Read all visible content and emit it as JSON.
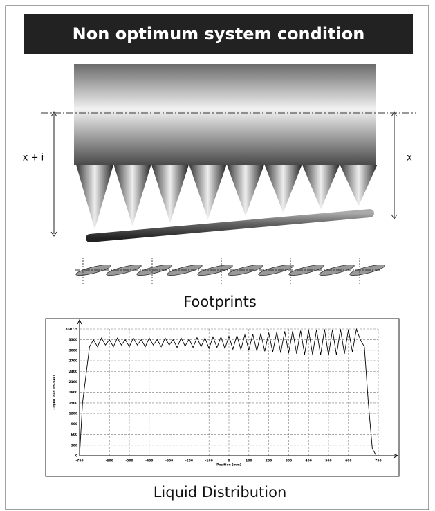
{
  "title": "Non optimum system condition",
  "left_offset_label": "x + i",
  "right_offset_label": "x",
  "footprints_caption": "Footprints",
  "chart_caption": "Liquid Distribution",
  "chart_data": {
    "type": "line",
    "x_label": "Position [mm]",
    "y_label": "Liquid load [ml/sec]",
    "xlim": [
      -750,
      750
    ],
    "ylim": [
      0,
      3607.5
    ],
    "xticks": [
      -750,
      -600,
      -500,
      -400,
      -300,
      -200,
      -100,
      0,
      100,
      200,
      300,
      400,
      500,
      600,
      750
    ],
    "yticks": [
      0,
      300,
      600,
      900,
      1200,
      1500,
      1800,
      2100,
      2400,
      2700,
      3000,
      3300,
      {
        "value": 3607.5,
        "label": "3607,5"
      }
    ],
    "grid": true,
    "x": [
      -750,
      -735,
      -700,
      -680,
      -660,
      -640,
      -620,
      -600,
      -580,
      -560,
      -540,
      -520,
      -500,
      -480,
      -460,
      -440,
      -420,
      -400,
      -380,
      -360,
      -340,
      -320,
      -300,
      -280,
      -260,
      -240,
      -220,
      -200,
      -180,
      -160,
      -140,
      -120,
      -100,
      -80,
      -60,
      -40,
      -20,
      0,
      20,
      40,
      60,
      80,
      100,
      120,
      140,
      160,
      180,
      200,
      220,
      240,
      260,
      280,
      300,
      320,
      340,
      360,
      380,
      400,
      420,
      440,
      460,
      480,
      500,
      520,
      540,
      560,
      580,
      600,
      620,
      640,
      660,
      680,
      700,
      720,
      740
    ],
    "series": [
      {
        "color": "#000000",
        "values": [
          0,
          1500,
          3100,
          3300,
          3100,
          3350,
          3150,
          3300,
          3100,
          3350,
          3150,
          3300,
          3100,
          3350,
          3150,
          3300,
          3100,
          3350,
          3150,
          3300,
          3100,
          3350,
          3150,
          3300,
          3080,
          3350,
          3120,
          3320,
          3080,
          3360,
          3100,
          3350,
          3050,
          3380,
          3080,
          3380,
          3050,
          3400,
          3030,
          3420,
          3020,
          3440,
          3000,
          3460,
          2980,
          3480,
          2970,
          3500,
          2950,
          3520,
          2930,
          3540,
          2920,
          3550,
          2900,
          3560,
          2880,
          3580,
          2870,
          3590,
          2860,
          3600,
          2850,
          3590,
          2860,
          3600,
          2900,
          3590,
          2950,
          3600,
          3300,
          3100,
          1500,
          200,
          0
        ]
      }
    ]
  }
}
